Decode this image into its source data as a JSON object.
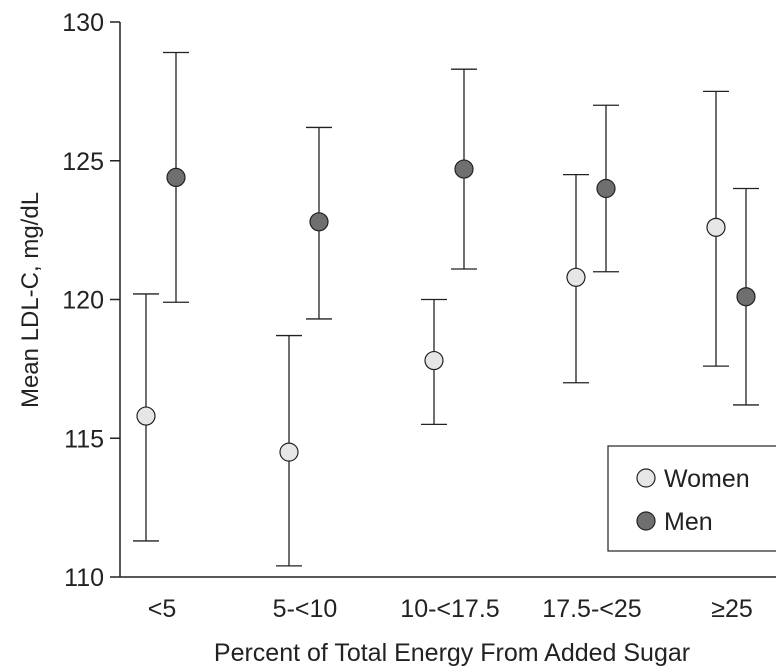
{
  "chart_data": {
    "type": "scatter",
    "xlabel": "Percent of Total Energy From Added Sugar",
    "ylabel": "Mean LDL-C, mg/dL",
    "categories": [
      "<5",
      "5-<10",
      "10-<17.5",
      "17.5-<25",
      "≥25"
    ],
    "ylim": [
      110,
      130
    ],
    "yticks": [
      110,
      115,
      120,
      125,
      130
    ],
    "grid": false,
    "legend_position": "bottom-right",
    "series": [
      {
        "name": "Women",
        "color": "#e6e6e6",
        "values": [
          115.8,
          114.5,
          117.8,
          120.8,
          122.6
        ],
        "lower": [
          111.3,
          110.4,
          115.5,
          117.0,
          117.6
        ],
        "upper": [
          120.2,
          118.7,
          120.0,
          124.5,
          127.5
        ]
      },
      {
        "name": "Men",
        "color": "#6f6f6f",
        "values": [
          124.4,
          122.8,
          124.7,
          124.0,
          120.1
        ],
        "lower": [
          119.9,
          119.3,
          121.1,
          121.0,
          116.2
        ],
        "upper": [
          128.9,
          126.2,
          128.3,
          127.0,
          124.0
        ]
      }
    ]
  }
}
